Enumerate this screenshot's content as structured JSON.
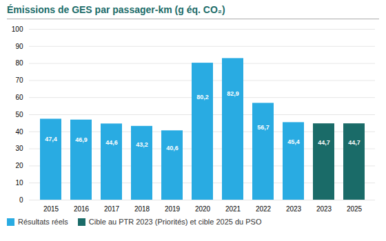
{
  "chart_data": {
    "type": "bar",
    "title": "Émissions de GES par passager-km (g éq. CO₂)",
    "categories": [
      "2015",
      "2016",
      "2017",
      "2018",
      "2019",
      "2020",
      "2021",
      "2022",
      "2023",
      "2023",
      "2025"
    ],
    "series": [
      {
        "name": "Résultats réels",
        "color": "#29ABE2",
        "values": [
          47.4,
          46.9,
          44.6,
          43.2,
          40.6,
          80.2,
          82.9,
          56.7,
          45.4,
          null,
          null
        ],
        "value_labels": [
          "47,4",
          "46,9",
          "44,6",
          "43,2",
          "40,6",
          "80,2",
          "82,9",
          "56,7",
          "45,4",
          null,
          null
        ]
      },
      {
        "name": "Cible au PTR 2023 (Priorités) et cible 2025 du PSO",
        "color": "#1A6B68",
        "values": [
          null,
          null,
          null,
          null,
          null,
          null,
          null,
          null,
          null,
          44.7,
          44.7
        ],
        "value_labels": [
          null,
          null,
          null,
          null,
          null,
          null,
          null,
          null,
          null,
          "44,7",
          "44,7"
        ]
      }
    ],
    "ylim": [
      0,
      100
    ],
    "yticks": [
      0,
      10,
      20,
      30,
      40,
      50,
      60,
      70,
      80,
      90,
      100
    ],
    "grid": true,
    "legend": "lower left",
    "data_labels": true
  }
}
